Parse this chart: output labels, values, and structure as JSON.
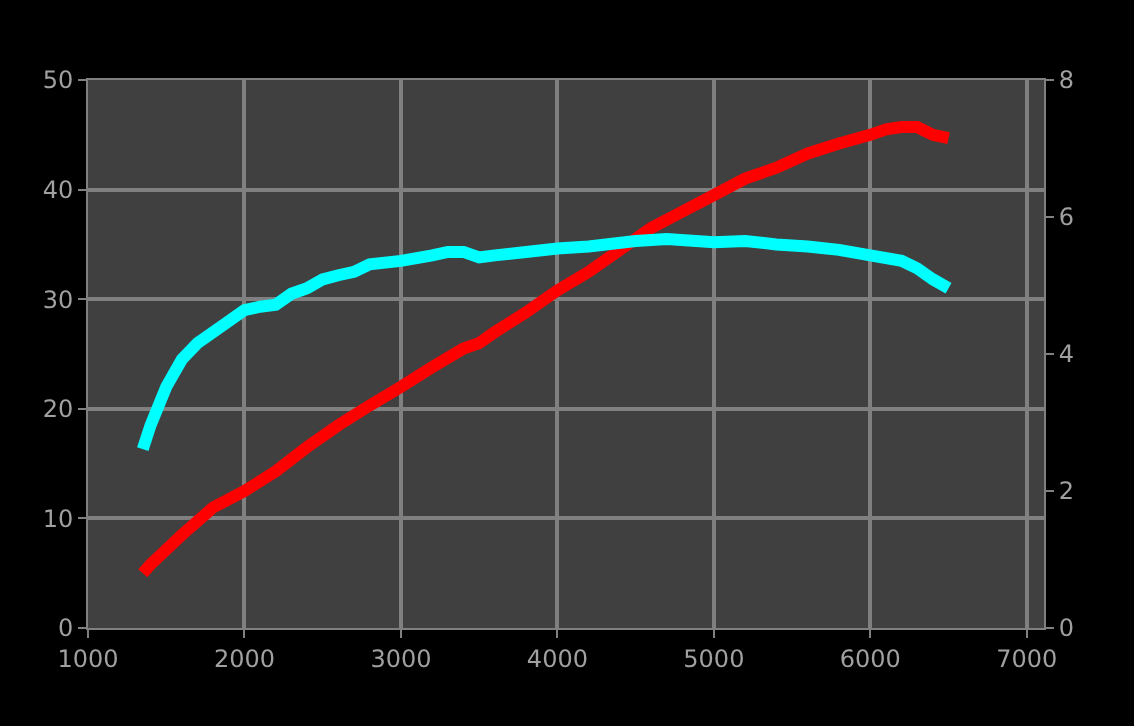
{
  "chart_data": {
    "type": "line",
    "xlim": [
      1000,
      7110
    ],
    "xticks": [
      1000,
      2000,
      3000,
      4000,
      5000,
      6000,
      7000
    ],
    "ylim": [
      0,
      50
    ],
    "yticks": [
      0,
      10,
      20,
      30,
      40,
      50
    ],
    "y2lim": [
      0,
      8
    ],
    "y2ticks": [
      0,
      2,
      4,
      6,
      8
    ],
    "grid": true,
    "marker": "none",
    "line_style": "solid",
    "series": [
      {
        "color": "#ff0000",
        "x": [
          1350,
          1400,
          1600,
          1800,
          2000,
          2200,
          2400,
          2600,
          2800,
          3000,
          3200,
          3400,
          3500,
          3600,
          3800,
          4000,
          4200,
          4400,
          4600,
          4800,
          5000,
          5200,
          5400,
          5600,
          5800,
          6000,
          6100,
          6200,
          6300,
          6400,
          6500
        ],
        "values": [
          5,
          5.8,
          8.5,
          11,
          12.5,
          14.3,
          16.5,
          18.5,
          20.3,
          22,
          23.8,
          25.5,
          26,
          27,
          28.8,
          30.8,
          32.5,
          34.5,
          36.5,
          38,
          39.5,
          41,
          42,
          43.3,
          44.2,
          45,
          45.5,
          45.7,
          45.7,
          45,
          44.7
        ]
      },
      {
        "color": "#00ffff",
        "axis": "y2",
        "x": [
          1350,
          1400,
          1500,
          1600,
          1700,
          1800,
          1900,
          2000,
          2100,
          2200,
          2300,
          2400,
          2500,
          2600,
          2700,
          2800,
          3000,
          3200,
          3300,
          3400,
          3500,
          3600,
          3800,
          4000,
          4200,
          4500,
          4700,
          5000,
          5200,
          5400,
          5600,
          5800,
          6000,
          6200,
          6300,
          6400,
          6500
        ],
        "values": [
          2.61,
          2.96,
          3.52,
          3.92,
          4.16,
          4.32,
          4.48,
          4.64,
          4.69,
          4.72,
          4.88,
          4.96,
          5.09,
          5.15,
          5.2,
          5.31,
          5.36,
          5.44,
          5.49,
          5.49,
          5.41,
          5.44,
          5.49,
          5.54,
          5.57,
          5.65,
          5.68,
          5.63,
          5.65,
          5.6,
          5.57,
          5.52,
          5.44,
          5.36,
          5.25,
          5.09,
          4.96
        ]
      }
    ]
  }
}
